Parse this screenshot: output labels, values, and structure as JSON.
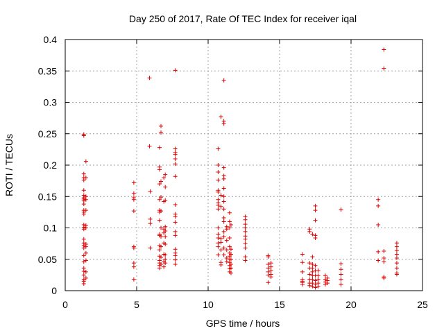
{
  "chart_data": {
    "type": "scatter",
    "title": "Day 250 of 2017, Rate Of TEC Index for receiver iqal",
    "xlabel": "GPS time / hours",
    "ylabel": "ROTI / TECUs",
    "xlim": [
      0,
      25
    ],
    "ylim": [
      0,
      0.4
    ],
    "xticks": [
      0,
      5,
      10,
      15,
      20,
      25
    ],
    "yticks": [
      0,
      0.05,
      0.1,
      0.15,
      0.2,
      0.25,
      0.3,
      0.35,
      0.4
    ],
    "xtick_labels": [
      "0",
      "5",
      "10",
      "15",
      "20",
      "25"
    ],
    "ytick_labels": [
      "0",
      "0.05",
      "0.1",
      "0.15",
      "0.2",
      "0.25",
      "0.3",
      "0.35",
      "0.4"
    ],
    "grid": true,
    "marker": "+",
    "color": "#e00000",
    "points": [
      [
        1.3,
        0.249
      ],
      [
        1.3,
        0.247
      ],
      [
        1.3,
        0.186
      ],
      [
        1.3,
        0.18
      ],
      [
        1.3,
        0.176
      ],
      [
        1.3,
        0.16
      ],
      [
        1.3,
        0.152
      ],
      [
        1.3,
        0.148
      ],
      [
        1.3,
        0.146
      ],
      [
        1.3,
        0.143
      ],
      [
        1.3,
        0.138
      ],
      [
        1.3,
        0.128
      ],
      [
        1.3,
        0.125
      ],
      [
        1.3,
        0.122
      ],
      [
        1.3,
        0.105
      ],
      [
        1.3,
        0.101
      ],
      [
        1.3,
        0.098
      ],
      [
        1.3,
        0.082
      ],
      [
        1.3,
        0.076
      ],
      [
        1.3,
        0.072
      ],
      [
        1.3,
        0.068
      ],
      [
        1.3,
        0.056
      ],
      [
        1.3,
        0.046
      ],
      [
        1.3,
        0.036
      ],
      [
        1.3,
        0.031
      ],
      [
        1.3,
        0.025
      ],
      [
        1.3,
        0.018
      ],
      [
        1.3,
        0.015
      ],
      [
        1.3,
        0.011
      ],
      [
        1.45,
        0.206
      ],
      [
        1.45,
        0.18
      ],
      [
        1.45,
        0.15
      ],
      [
        1.45,
        0.145
      ],
      [
        1.45,
        0.128
      ],
      [
        1.45,
        0.104
      ],
      [
        1.45,
        0.1
      ],
      [
        1.45,
        0.074
      ],
      [
        1.45,
        0.07
      ],
      [
        1.45,
        0.06
      ],
      [
        1.45,
        0.048
      ],
      [
        1.45,
        0.03
      ],
      [
        1.45,
        0.02
      ],
      [
        4.8,
        0.172
      ],
      [
        4.8,
        0.155
      ],
      [
        4.8,
        0.148
      ],
      [
        4.8,
        0.145
      ],
      [
        4.8,
        0.127
      ],
      [
        4.8,
        0.07
      ],
      [
        4.8,
        0.068
      ],
      [
        4.8,
        0.044
      ],
      [
        4.8,
        0.038
      ],
      [
        4.8,
        0.018
      ],
      [
        5.9,
        0.339
      ],
      [
        5.9,
        0.23
      ],
      [
        5.95,
        0.158
      ],
      [
        5.95,
        0.114
      ],
      [
        5.95,
        0.107
      ],
      [
        5.95,
        0.068
      ],
      [
        6.6,
        0.228
      ],
      [
        6.6,
        0.197
      ],
      [
        6.6,
        0.193
      ],
      [
        6.6,
        0.17
      ],
      [
        6.6,
        0.145
      ],
      [
        6.6,
        0.128
      ],
      [
        6.6,
        0.125
      ],
      [
        6.6,
        0.112
      ],
      [
        6.6,
        0.09
      ],
      [
        6.6,
        0.088
      ],
      [
        6.6,
        0.072
      ],
      [
        6.6,
        0.065
      ],
      [
        6.6,
        0.055
      ],
      [
        6.6,
        0.048
      ],
      [
        6.6,
        0.044
      ],
      [
        6.6,
        0.04
      ],
      [
        6.6,
        0.036
      ],
      [
        6.7,
        0.262
      ],
      [
        6.7,
        0.252
      ],
      [
        6.7,
        0.174
      ],
      [
        6.7,
        0.149
      ],
      [
        6.7,
        0.127
      ],
      [
        6.7,
        0.1
      ],
      [
        6.7,
        0.086
      ],
      [
        6.7,
        0.07
      ],
      [
        6.7,
        0.053
      ],
      [
        6.7,
        0.042
      ],
      [
        6.9,
        0.18
      ],
      [
        6.9,
        0.142
      ],
      [
        6.9,
        0.098
      ],
      [
        6.9,
        0.092
      ],
      [
        6.9,
        0.076
      ],
      [
        6.9,
        0.058
      ],
      [
        6.9,
        0.046
      ],
      [
        6.9,
        0.038
      ],
      [
        7.0,
        0.185
      ],
      [
        7.0,
        0.165
      ],
      [
        7.0,
        0.144
      ],
      [
        7.0,
        0.102
      ],
      [
        7.0,
        0.095
      ],
      [
        7.0,
        0.086
      ],
      [
        7.0,
        0.074
      ],
      [
        7.0,
        0.057
      ],
      [
        7.0,
        0.05
      ],
      [
        7.0,
        0.044
      ],
      [
        7.7,
        0.351
      ],
      [
        7.7,
        0.226
      ],
      [
        7.7,
        0.22
      ],
      [
        7.7,
        0.217
      ],
      [
        7.7,
        0.21
      ],
      [
        7.7,
        0.202
      ],
      [
        7.7,
        0.182
      ],
      [
        7.7,
        0.137
      ],
      [
        7.7,
        0.122
      ],
      [
        7.7,
        0.118
      ],
      [
        7.7,
        0.109
      ],
      [
        7.7,
        0.094
      ],
      [
        7.7,
        0.088
      ],
      [
        7.7,
        0.066
      ],
      [
        7.7,
        0.06
      ],
      [
        7.7,
        0.056
      ],
      [
        7.7,
        0.049
      ],
      [
        7.7,
        0.042
      ],
      [
        10.7,
        0.226
      ],
      [
        10.7,
        0.2
      ],
      [
        10.7,
        0.189
      ],
      [
        10.7,
        0.176
      ],
      [
        10.7,
        0.16
      ],
      [
        10.7,
        0.157
      ],
      [
        10.7,
        0.145
      ],
      [
        10.7,
        0.14
      ],
      [
        10.7,
        0.136
      ],
      [
        10.7,
        0.13
      ],
      [
        10.7,
        0.1
      ],
      [
        10.7,
        0.09
      ],
      [
        10.7,
        0.084
      ],
      [
        10.7,
        0.076
      ],
      [
        10.7,
        0.07
      ],
      [
        10.7,
        0.057
      ],
      [
        10.9,
        0.277
      ],
      [
        10.9,
        0.152
      ],
      [
        10.9,
        0.134
      ],
      [
        10.9,
        0.083
      ],
      [
        10.9,
        0.077
      ],
      [
        10.9,
        0.065
      ],
      [
        10.9,
        0.045
      ],
      [
        10.9,
        0.041
      ],
      [
        11.1,
        0.335
      ],
      [
        11.1,
        0.27
      ],
      [
        11.1,
        0.266
      ],
      [
        11.1,
        0.196
      ],
      [
        11.1,
        0.183
      ],
      [
        11.1,
        0.178
      ],
      [
        11.1,
        0.163
      ],
      [
        11.1,
        0.15
      ],
      [
        11.1,
        0.142
      ],
      [
        11.1,
        0.13
      ],
      [
        11.1,
        0.116
      ],
      [
        11.1,
        0.11
      ],
      [
        11.1,
        0.094
      ],
      [
        11.1,
        0.086
      ],
      [
        11.1,
        0.068
      ],
      [
        11.1,
        0.057
      ],
      [
        11.3,
        0.102
      ],
      [
        11.3,
        0.098
      ],
      [
        11.3,
        0.08
      ],
      [
        11.3,
        0.065
      ],
      [
        11.3,
        0.052
      ],
      [
        11.3,
        0.046
      ],
      [
        11.5,
        0.124
      ],
      [
        11.5,
        0.11
      ],
      [
        11.5,
        0.1
      ],
      [
        11.5,
        0.084
      ],
      [
        11.5,
        0.07
      ],
      [
        11.5,
        0.06
      ],
      [
        11.5,
        0.055
      ],
      [
        11.5,
        0.05
      ],
      [
        11.5,
        0.045
      ],
      [
        11.5,
        0.04
      ],
      [
        11.5,
        0.035
      ],
      [
        11.5,
        0.03
      ],
      [
        11.6,
        0.105
      ],
      [
        11.6,
        0.066
      ],
      [
        11.6,
        0.058
      ],
      [
        11.6,
        0.05
      ],
      [
        11.6,
        0.042
      ],
      [
        11.6,
        0.036
      ],
      [
        11.6,
        0.028
      ],
      [
        12.6,
        0.118
      ],
      [
        12.6,
        0.113
      ],
      [
        12.6,
        0.106
      ],
      [
        12.6,
        0.1
      ],
      [
        12.6,
        0.094
      ],
      [
        12.6,
        0.087
      ],
      [
        12.6,
        0.082
      ],
      [
        12.6,
        0.075
      ],
      [
        12.6,
        0.068
      ],
      [
        12.6,
        0.054
      ],
      [
        12.6,
        0.048
      ],
      [
        14.2,
        0.056
      ],
      [
        14.2,
        0.054
      ],
      [
        14.2,
        0.042
      ],
      [
        14.2,
        0.036
      ],
      [
        14.2,
        0.03
      ],
      [
        14.2,
        0.025
      ],
      [
        14.2,
        0.013
      ],
      [
        14.4,
        0.044
      ],
      [
        14.4,
        0.038
      ],
      [
        14.4,
        0.032
      ],
      [
        14.4,
        0.026
      ],
      [
        14.4,
        0.022
      ],
      [
        16.6,
        0.058
      ],
      [
        16.6,
        0.045
      ],
      [
        16.6,
        0.03
      ],
      [
        16.6,
        0.018
      ],
      [
        16.6,
        0.015
      ],
      [
        16.6,
        0.013
      ],
      [
        16.6,
        0.01
      ],
      [
        17.1,
        0.098
      ],
      [
        17.1,
        0.094
      ],
      [
        17.1,
        0.044
      ],
      [
        17.1,
        0.036
      ],
      [
        17.1,
        0.026
      ],
      [
        17.1,
        0.018
      ],
      [
        17.1,
        0.012
      ],
      [
        17.1,
        0.008
      ],
      [
        17.3,
        0.09
      ],
      [
        17.3,
        0.054
      ],
      [
        17.3,
        0.042
      ],
      [
        17.3,
        0.036
      ],
      [
        17.3,
        0.03
      ],
      [
        17.3,
        0.024
      ],
      [
        17.3,
        0.018
      ],
      [
        17.3,
        0.012
      ],
      [
        17.3,
        0.007
      ],
      [
        17.5,
        0.135
      ],
      [
        17.5,
        0.128
      ],
      [
        17.5,
        0.112
      ],
      [
        17.5,
        0.088
      ],
      [
        17.5,
        0.084
      ],
      [
        17.5,
        0.04
      ],
      [
        17.5,
        0.032
      ],
      [
        17.5,
        0.024
      ],
      [
        17.5,
        0.016
      ],
      [
        17.5,
        0.01
      ],
      [
        17.5,
        0.005
      ],
      [
        17.7,
        0.032
      ],
      [
        17.7,
        0.024
      ],
      [
        17.7,
        0.018
      ],
      [
        17.7,
        0.012
      ],
      [
        17.7,
        0.007
      ],
      [
        18.2,
        0.024
      ],
      [
        18.2,
        0.018
      ],
      [
        18.2,
        0.014
      ],
      [
        18.2,
        0.01
      ],
      [
        18.35,
        0.02
      ],
      [
        18.35,
        0.016
      ],
      [
        18.35,
        0.012
      ],
      [
        19.3,
        0.129
      ],
      [
        19.3,
        0.043
      ],
      [
        19.3,
        0.034
      ],
      [
        19.3,
        0.026
      ],
      [
        19.3,
        0.018
      ],
      [
        19.3,
        0.01
      ],
      [
        21.9,
        0.145
      ],
      [
        21.9,
        0.135
      ],
      [
        21.9,
        0.105
      ],
      [
        21.9,
        0.062
      ],
      [
        21.9,
        0.048
      ],
      [
        22.3,
        0.384
      ],
      [
        22.3,
        0.354
      ],
      [
        22.3,
        0.063
      ],
      [
        22.3,
        0.052
      ],
      [
        22.3,
        0.046
      ],
      [
        22.3,
        0.022
      ],
      [
        22.3,
        0.02
      ],
      [
        23.2,
        0.076
      ],
      [
        23.2,
        0.07
      ],
      [
        23.2,
        0.064
      ],
      [
        23.2,
        0.058
      ],
      [
        23.2,
        0.052
      ],
      [
        23.2,
        0.044
      ],
      [
        23.2,
        0.036
      ],
      [
        23.2,
        0.028
      ],
      [
        23.2,
        0.026
      ]
    ]
  }
}
